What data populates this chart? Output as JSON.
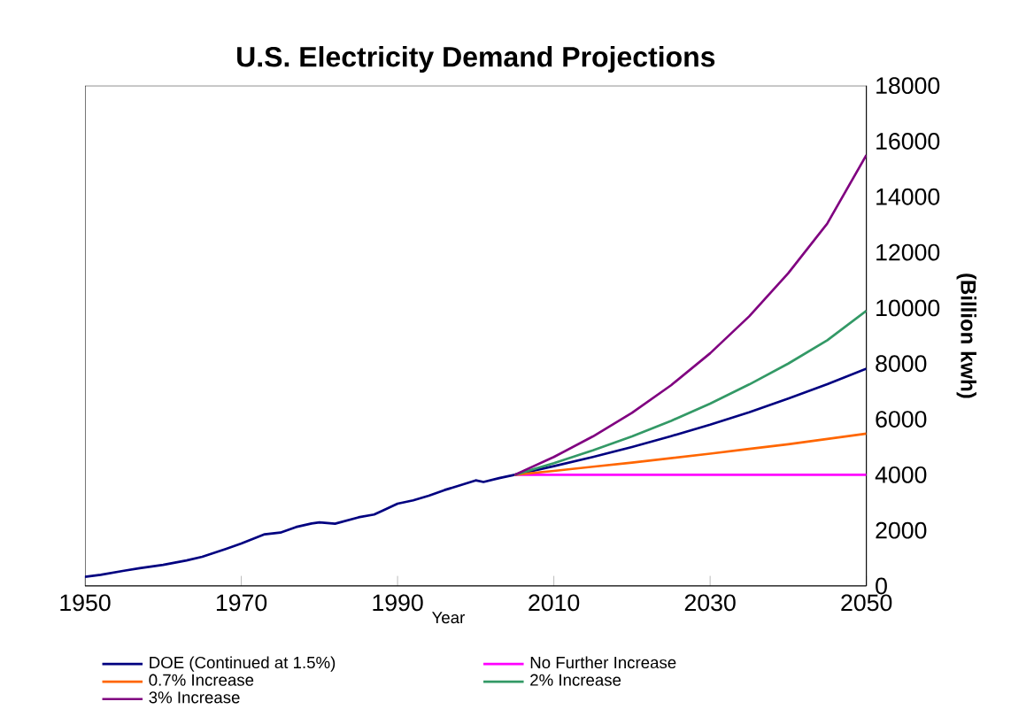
{
  "chart_data": {
    "type": "line",
    "title": "U.S. Electricity Demand Projections",
    "xlabel": "Year",
    "ylabel": "(Billion kwh)",
    "xlim": [
      1950,
      2050
    ],
    "ylim": [
      0,
      18000
    ],
    "xticks": [
      1950,
      1970,
      1990,
      2010,
      2030,
      2050
    ],
    "yticks": [
      0,
      2000,
      4000,
      6000,
      8000,
      10000,
      12000,
      14000,
      16000,
      18000
    ],
    "legend": "bottom",
    "line_style": "solid",
    "marker": "none",
    "series": [
      {
        "name": "DOE (Continued at 1.5%)",
        "color": "#000080",
        "x": [
          1950,
          1952,
          1955,
          1957,
          1960,
          1963,
          1965,
          1968,
          1970,
          1972,
          1973,
          1975,
          1977,
          1979,
          1980,
          1982,
          1985,
          1987,
          1988,
          1990,
          1992,
          1994,
          1996,
          1998,
          2000,
          2001,
          2003,
          2005,
          2010,
          2015,
          2020,
          2025,
          2030,
          2035,
          2040,
          2045,
          2050
        ],
        "values": [
          330,
          400,
          550,
          640,
          760,
          920,
          1050,
          1330,
          1530,
          1750,
          1860,
          1920,
          2120,
          2250,
          2290,
          2240,
          2470,
          2570,
          2700,
          2960,
          3080,
          3250,
          3450,
          3620,
          3800,
          3740,
          3880,
          4000,
          4310,
          4640,
          5000,
          5390,
          5800,
          6250,
          6740,
          7260,
          7820
        ]
      },
      {
        "name": "No Further Increase",
        "color": "#ff00ff",
        "x": [
          2005,
          2050
        ],
        "values": [
          4000,
          4000
        ]
      },
      {
        "name": "0.7% Increase",
        "color": "#ff6600",
        "x": [
          2005,
          2010,
          2015,
          2020,
          2025,
          2030,
          2035,
          2040,
          2045,
          2050
        ],
        "values": [
          4000,
          4140,
          4290,
          4440,
          4600,
          4760,
          4930,
          5100,
          5290,
          5480
        ]
      },
      {
        "name": "2% Increase",
        "color": "#339966",
        "x": [
          2005,
          2010,
          2015,
          2020,
          2025,
          2030,
          2035,
          2040,
          2045,
          2050
        ],
        "values": [
          4000,
          4420,
          4880,
          5380,
          5940,
          6560,
          7250,
          8000,
          8840,
          9900
        ]
      },
      {
        "name": "3% Increase",
        "color": "#800080",
        "x": [
          2005,
          2010,
          2015,
          2020,
          2025,
          2030,
          2035,
          2040,
          2045,
          2050
        ],
        "values": [
          4000,
          4640,
          5380,
          6230,
          7220,
          8370,
          9700,
          11250,
          13040,
          15500
        ]
      }
    ]
  }
}
